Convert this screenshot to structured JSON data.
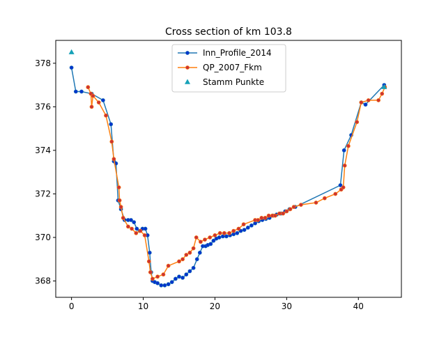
{
  "chart_data": {
    "type": "line",
    "title": "Cross section of km 103.8",
    "xlabel": "",
    "ylabel": "",
    "xlim": [
      -2.2,
      46.0
    ],
    "ylim": [
      367.25,
      379.05
    ],
    "xticks": [
      0,
      10,
      20,
      30,
      40
    ],
    "yticks": [
      368,
      370,
      372,
      374,
      376,
      378
    ],
    "grid": false,
    "legend_position": "upper center",
    "series": [
      {
        "name": "Inn_Profile_2014",
        "style": "line-with-dots",
        "line_color": "#1f77b4",
        "marker_color": "#0033cc",
        "x": [
          0.0,
          0.6,
          1.4,
          2.8,
          4.4,
          5.5,
          5.9,
          6.2,
          6.5,
          6.9,
          7.4,
          7.9,
          8.3,
          8.7,
          9.1,
          9.5,
          9.9,
          10.3,
          10.6,
          10.9,
          11.1,
          11.3,
          11.6,
          12.0,
          12.5,
          13.0,
          13.5,
          14.0,
          14.5,
          15.0,
          15.5,
          16.0,
          16.5,
          17.0,
          17.5,
          17.9,
          18.3,
          18.7,
          19.0,
          19.4,
          19.8,
          20.2,
          20.6,
          21.1,
          21.6,
          22.1,
          22.6,
          23.1,
          23.6,
          24.1,
          24.6,
          25.1,
          25.6,
          26.1,
          26.6,
          27.1,
          27.6,
          28.1,
          28.6,
          29.2,
          29.8,
          30.4,
          31.2,
          37.5,
          38.0,
          39.0,
          40.4,
          41.0,
          43.6
        ],
        "y": [
          377.8,
          376.7,
          376.7,
          376.6,
          376.3,
          375.2,
          373.5,
          373.4,
          371.7,
          371.3,
          370.8,
          370.8,
          370.8,
          370.7,
          370.4,
          370.3,
          370.4,
          370.4,
          370.1,
          369.3,
          368.4,
          368.0,
          367.95,
          367.9,
          367.8,
          367.8,
          367.85,
          367.95,
          368.1,
          368.2,
          368.15,
          368.3,
          368.45,
          368.6,
          369.0,
          369.3,
          369.6,
          369.6,
          369.65,
          369.7,
          369.85,
          369.95,
          370.0,
          370.05,
          370.05,
          370.1,
          370.15,
          370.2,
          370.3,
          370.35,
          370.45,
          370.55,
          370.65,
          370.75,
          370.8,
          370.85,
          370.9,
          371.0,
          371.05,
          371.1,
          371.2,
          371.3,
          371.4,
          372.4,
          374.0,
          374.7,
          376.2,
          376.1,
          377.0
        ]
      },
      {
        "name": "QP_2007_Fkm",
        "style": "line-with-dots",
        "line_color": "#ff7f0e",
        "marker_color": "#cc3333",
        "x": [
          2.3,
          2.7,
          2.8,
          3.0,
          3.8,
          4.8,
          5.6,
          5.9,
          6.6,
          6.7,
          6.9,
          7.2,
          7.9,
          8.4,
          9.0,
          9.6,
          10.2,
          10.8,
          11.0,
          11.3,
          12.0,
          12.8,
          13.5,
          15.0,
          15.5,
          16.0,
          16.5,
          17.0,
          17.4,
          18.0,
          18.6,
          19.3,
          20.0,
          20.7,
          21.3,
          22.0,
          22.6,
          23.3,
          24.0,
          25.6,
          26.0,
          26.5,
          27.0,
          27.5,
          28.0,
          28.4,
          29.0,
          29.5,
          30.0,
          30.5,
          31.0,
          32.0,
          34.1,
          35.3,
          36.8,
          37.6,
          37.9,
          38.1,
          38.6,
          39.8,
          40.4,
          41.4,
          42.8,
          43.3,
          43.7
        ],
        "y": [
          376.9,
          376.6,
          376.0,
          376.5,
          376.2,
          375.6,
          374.4,
          373.6,
          372.3,
          371.7,
          371.4,
          370.9,
          370.5,
          370.4,
          370.2,
          370.3,
          370.1,
          368.9,
          368.4,
          368.1,
          368.2,
          368.3,
          368.7,
          368.9,
          369.0,
          369.2,
          369.3,
          369.5,
          370.0,
          369.8,
          369.9,
          370.0,
          370.1,
          370.2,
          370.2,
          370.2,
          370.3,
          370.4,
          370.6,
          370.8,
          370.8,
          370.9,
          370.9,
          371.0,
          371.0,
          371.0,
          371.1,
          371.1,
          371.2,
          371.3,
          371.4,
          371.5,
          371.6,
          371.8,
          372.0,
          372.2,
          372.3,
          373.3,
          374.2,
          375.3,
          376.2,
          376.3,
          376.3,
          376.6,
          376.9
        ]
      },
      {
        "name": "Stamm Punkte",
        "style": "markers",
        "marker": "triangle",
        "marker_color": "#17a2b8",
        "x": [
          0.0,
          43.6
        ],
        "y": [
          378.5,
          376.9
        ]
      }
    ]
  }
}
